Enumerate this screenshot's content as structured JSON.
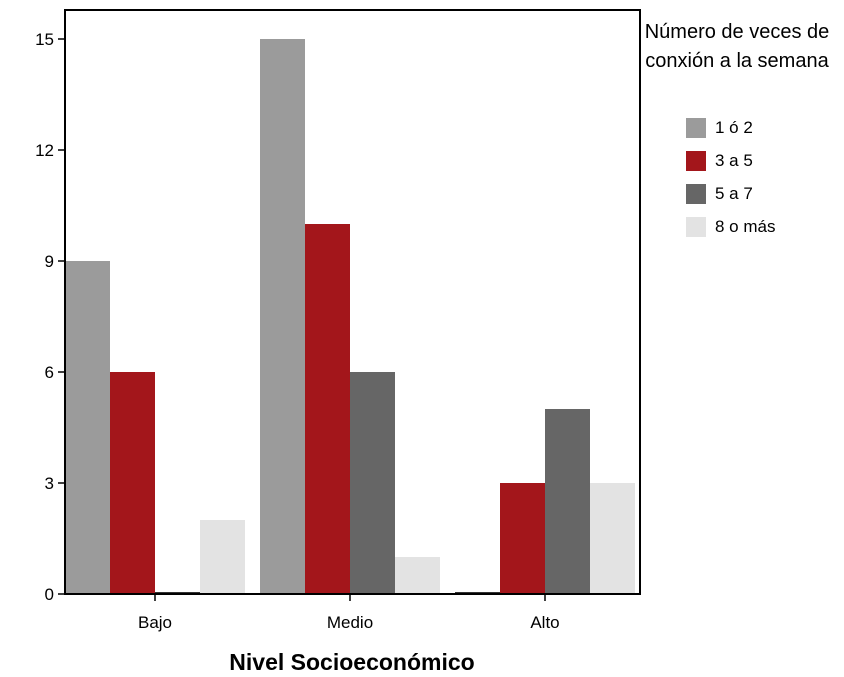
{
  "chart_data": {
    "type": "bar",
    "xlabel": "Nivel Socioeconómico",
    "ylabel": "",
    "categories": [
      "Bajo",
      "Medio",
      "Alto"
    ],
    "ylim": [
      0,
      16
    ],
    "yticks": [
      0,
      3,
      6,
      9,
      12,
      15
    ],
    "grid": false,
    "legend": {
      "title": "Número de veces de conxión a la semana",
      "placement": "top-right"
    },
    "series": [
      {
        "name": "1 ó 2",
        "color": "#9b9b9b",
        "values": [
          9,
          15,
          0
        ]
      },
      {
        "name": "3 a 5",
        "color": "#a3161b",
        "values": [
          6,
          10,
          3
        ]
      },
      {
        "name": "5 a 7",
        "color": "#666666",
        "values": [
          0,
          6,
          5
        ]
      },
      {
        "name": "8 o más",
        "color": "#e3e3e3",
        "values": [
          2,
          1,
          3
        ]
      }
    ]
  }
}
